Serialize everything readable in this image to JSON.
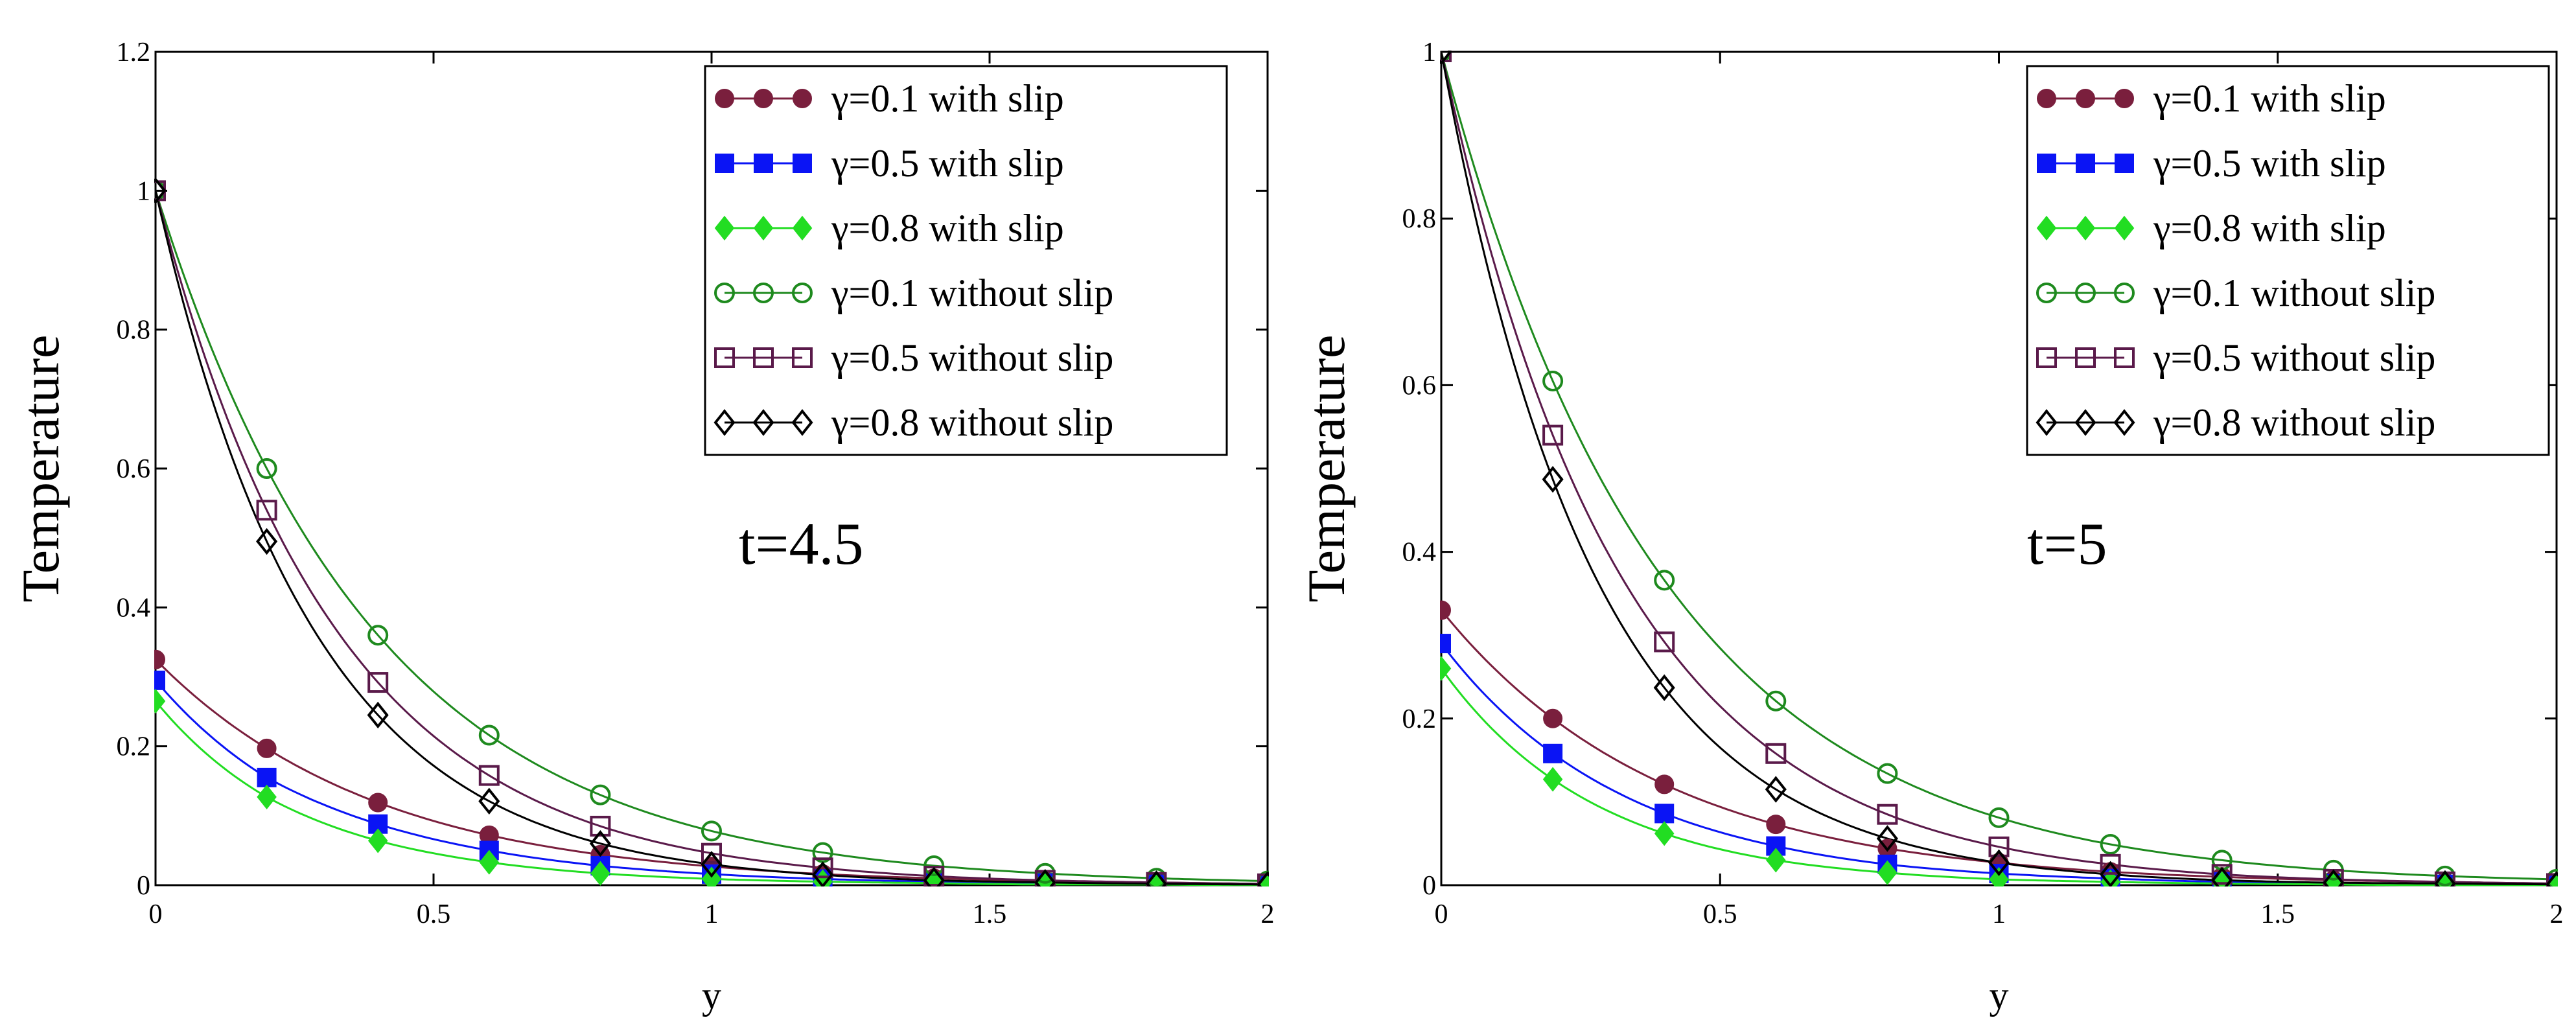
{
  "chart_data": [
    {
      "type": "line",
      "title": "",
      "annotation": "t=4.5",
      "xlabel": "y",
      "ylabel": "Temperature",
      "xlim": [
        0,
        2
      ],
      "ylim": [
        0,
        1.2
      ],
      "xticks": [
        "0",
        "0.5",
        "1",
        "1.5",
        "2"
      ],
      "yticks": [
        "0",
        "0.2",
        "0.4",
        "0.6",
        "0.8",
        "1",
        "1.2"
      ],
      "x": [
        0,
        0.2,
        0.4,
        0.6,
        0.8,
        1.0,
        1.2,
        1.4,
        1.6,
        1.8,
        2.0
      ],
      "series": [
        {
          "name": "γ=0.1 with slip",
          "color": "#7a1f3d",
          "marker": "circle",
          "filled": true,
          "values": [
            0.325,
            0.197,
            0.119,
            0.072,
            0.044,
            0.027,
            0.016,
            0.01,
            0.006,
            0.004,
            0.002
          ]
        },
        {
          "name": "γ=0.5 with slip",
          "color": "#0a14f5",
          "marker": "square",
          "filled": true,
          "values": [
            0.295,
            0.155,
            0.088,
            0.05,
            0.028,
            0.016,
            0.009,
            0.005,
            0.003,
            0.002,
            0.001
          ]
        },
        {
          "name": "γ=0.8 with slip",
          "color": "#22dd22",
          "marker": "diamond",
          "filled": true,
          "values": [
            0.265,
            0.127,
            0.064,
            0.033,
            0.017,
            0.009,
            0.005,
            0.003,
            0.001,
            0.001,
            0.0
          ]
        },
        {
          "name": "γ=0.1 without slip",
          "color": "#1e8a1e",
          "marker": "circle",
          "filled": false,
          "values": [
            1.0,
            0.6,
            0.36,
            0.216,
            0.13,
            0.078,
            0.047,
            0.028,
            0.017,
            0.01,
            0.006
          ]
        },
        {
          "name": "γ=0.5 without slip",
          "color": "#5a1a4a",
          "marker": "square",
          "filled": false,
          "values": [
            1.0,
            0.54,
            0.292,
            0.158,
            0.085,
            0.046,
            0.025,
            0.013,
            0.007,
            0.004,
            0.002
          ]
        },
        {
          "name": "γ=0.8 without slip",
          "color": "#000000",
          "marker": "diamond",
          "filled": false,
          "values": [
            1.0,
            0.495,
            0.245,
            0.121,
            0.06,
            0.03,
            0.015,
            0.007,
            0.004,
            0.002,
            0.001
          ]
        }
      ]
    },
    {
      "type": "line",
      "title": "",
      "annotation": "t=5",
      "xlabel": "y",
      "ylabel": "Temperature",
      "xlim": [
        0,
        2
      ],
      "ylim": [
        0,
        1
      ],
      "xticks": [
        "0",
        "0.5",
        "1",
        "1.5",
        "2"
      ],
      "yticks": [
        "0",
        "0.2",
        "0.4",
        "0.6",
        "0.8",
        "1"
      ],
      "x": [
        0,
        0.2,
        0.4,
        0.6,
        0.8,
        1.0,
        1.2,
        1.4,
        1.6,
        1.8,
        2.0
      ],
      "series": [
        {
          "name": "γ=0.1 with slip",
          "color": "#7a1f3d",
          "marker": "circle",
          "filled": true,
          "values": [
            0.33,
            0.2,
            0.121,
            0.073,
            0.044,
            0.027,
            0.016,
            0.01,
            0.006,
            0.004,
            0.002
          ]
        },
        {
          "name": "γ=0.5 with slip",
          "color": "#0a14f5",
          "marker": "square",
          "filled": true,
          "values": [
            0.29,
            0.158,
            0.086,
            0.047,
            0.025,
            0.014,
            0.008,
            0.004,
            0.002,
            0.001,
            0.001
          ]
        },
        {
          "name": "γ=0.8 with slip",
          "color": "#22dd22",
          "marker": "diamond",
          "filled": true,
          "values": [
            0.26,
            0.127,
            0.062,
            0.03,
            0.015,
            0.007,
            0.004,
            0.002,
            0.001,
            0.0,
            0.0
          ]
        },
        {
          "name": "γ=0.1 without slip",
          "color": "#1e8a1e",
          "marker": "circle",
          "filled": false,
          "values": [
            1.0,
            0.605,
            0.366,
            0.221,
            0.134,
            0.081,
            0.049,
            0.03,
            0.018,
            0.011,
            0.007
          ]
        },
        {
          "name": "γ=0.5 without slip",
          "color": "#5a1a4a",
          "marker": "square",
          "filled": false,
          "values": [
            1.0,
            0.54,
            0.292,
            0.158,
            0.085,
            0.046,
            0.025,
            0.013,
            0.007,
            0.004,
            0.002
          ]
        },
        {
          "name": "γ=0.8 without slip",
          "color": "#000000",
          "marker": "diamond",
          "filled": false,
          "values": [
            1.0,
            0.487,
            0.237,
            0.115,
            0.056,
            0.027,
            0.013,
            0.006,
            0.003,
            0.002,
            0.001
          ]
        }
      ]
    }
  ]
}
